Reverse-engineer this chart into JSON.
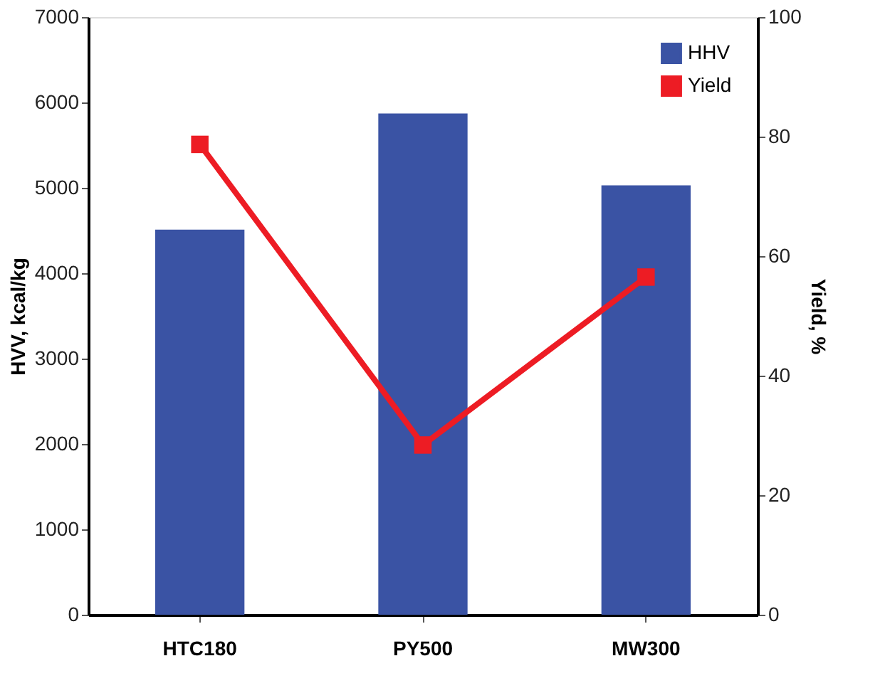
{
  "chart_data": {
    "type": "bar",
    "categories": [
      "HTC180",
      "PY500",
      "MW300"
    ],
    "series": [
      {
        "name": "HHV",
        "type": "bar",
        "color": "#3a53a4",
        "values": [
          4510,
          5870,
          5030
        ]
      },
      {
        "name": "Yield",
        "type": "line",
        "axis": "y2",
        "color": "#ed1c24",
        "marker": "square",
        "values": [
          78.7,
          28.4,
          56.5
        ]
      }
    ],
    "ylabel": "HVV, kcal/kg",
    "y2label": "Yield, %",
    "ylim": [
      0,
      7000
    ],
    "yticks": [
      0,
      1000,
      2000,
      3000,
      4000,
      5000,
      6000,
      7000
    ],
    "y2lim": [
      0,
      100
    ],
    "y2ticks": [
      0,
      20,
      40,
      60,
      80,
      100
    ],
    "grid": false,
    "legend": "top right"
  }
}
